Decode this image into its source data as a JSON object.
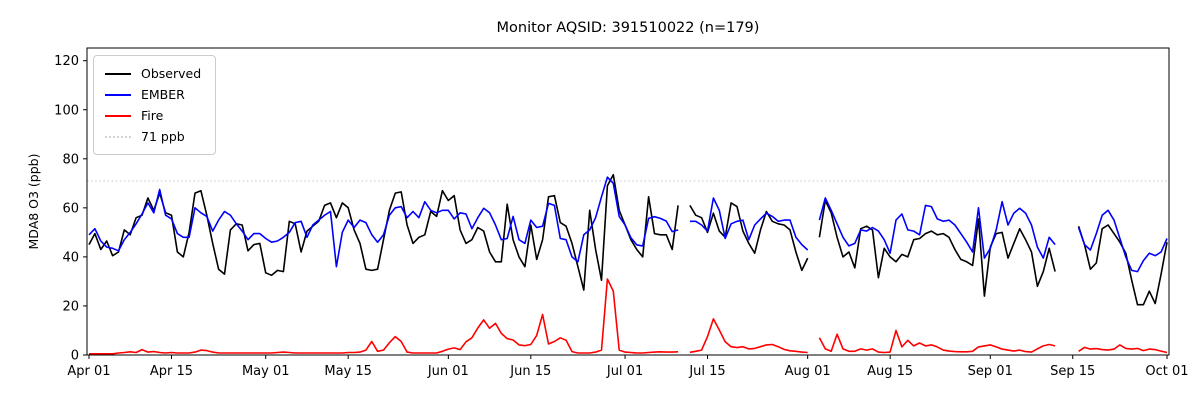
{
  "title": "Monitor AQSID: 391510022 (n=179)",
  "legend": [
    {
      "label": "Observed",
      "color": "#000000",
      "style": "solid"
    },
    {
      "label": "EMBER",
      "color": "#0000ff",
      "style": "solid"
    },
    {
      "label": "Fire",
      "color": "#ff0000",
      "style": "solid"
    },
    {
      "label": "71 ppb",
      "color": "#d3d3d3",
      "style": "dotted"
    }
  ],
  "y_axis": {
    "label": "MDA8 O3 (ppb)",
    "ticks": [
      0,
      20,
      40,
      60,
      80,
      100,
      120
    ]
  },
  "x_axis": {
    "tick_labels": [
      "Apr 01",
      "Apr 15",
      "May 01",
      "May 15",
      "Jun 01",
      "Jun 15",
      "Jul 01",
      "Jul 15",
      "Aug 01",
      "Aug 15",
      "Sep 01",
      "Sep 15",
      "Oct 01"
    ],
    "tick_days": [
      0,
      14,
      30,
      44,
      61,
      75,
      91,
      105,
      122,
      136,
      153,
      167,
      183
    ]
  },
  "chart_data": {
    "type": "line",
    "title": "Monitor AQSID: 391510022 (n=179)",
    "xlabel": "",
    "ylabel": "MDA8 O3 (ppb)",
    "ylim": [
      0,
      125
    ],
    "grid": false,
    "legend_position": "upper left",
    "threshold": {
      "label": "71 ppb",
      "value": 71,
      "color": "#d3d3d3",
      "style": "dotted"
    },
    "note": "Daily MDA8 ozone, Apr 01 - Oct 01. null = missing day (Jul 11, Aug 02, Sep 13-15); n=179 observed days.",
    "x": [
      "Apr 01",
      "Apr 02",
      "Apr 03",
      "Apr 04",
      "Apr 05",
      "Apr 06",
      "Apr 07",
      "Apr 08",
      "Apr 09",
      "Apr 10",
      "Apr 11",
      "Apr 12",
      "Apr 13",
      "Apr 14",
      "Apr 15",
      "Apr 16",
      "Apr 17",
      "Apr 18",
      "Apr 19",
      "Apr 20",
      "Apr 21",
      "Apr 22",
      "Apr 23",
      "Apr 24",
      "Apr 25",
      "Apr 26",
      "Apr 27",
      "Apr 28",
      "Apr 29",
      "Apr 30",
      "May 01",
      "May 02",
      "May 03",
      "May 04",
      "May 05",
      "May 06",
      "May 07",
      "May 08",
      "May 09",
      "May 10",
      "May 11",
      "May 12",
      "May 13",
      "May 14",
      "May 15",
      "May 16",
      "May 17",
      "May 18",
      "May 19",
      "May 20",
      "May 21",
      "May 22",
      "May 23",
      "May 24",
      "May 25",
      "May 26",
      "May 27",
      "May 28",
      "May 29",
      "May 30",
      "May 31",
      "Jun 01",
      "Jun 02",
      "Jun 03",
      "Jun 04",
      "Jun 05",
      "Jun 06",
      "Jun 07",
      "Jun 08",
      "Jun 09",
      "Jun 10",
      "Jun 11",
      "Jun 12",
      "Jun 13",
      "Jun 14",
      "Jun 15",
      "Jun 16",
      "Jun 17",
      "Jun 18",
      "Jun 19",
      "Jun 20",
      "Jun 21",
      "Jun 22",
      "Jun 23",
      "Jun 24",
      "Jun 25",
      "Jun 26",
      "Jun 27",
      "Jun 28",
      "Jun 29",
      "Jun 30",
      "Jul 01",
      "Jul 02",
      "Jul 03",
      "Jul 04",
      "Jul 05",
      "Jul 06",
      "Jul 07",
      "Jul 08",
      "Jul 09",
      "Jul 10",
      "Jul 11",
      "Jul 12",
      "Jul 13",
      "Jul 14",
      "Jul 15",
      "Jul 16",
      "Jul 17",
      "Jul 18",
      "Jul 19",
      "Jul 20",
      "Jul 21",
      "Jul 22",
      "Jul 23",
      "Jul 24",
      "Jul 25",
      "Jul 26",
      "Jul 27",
      "Jul 28",
      "Jul 29",
      "Jul 30",
      "Jul 31",
      "Aug 01",
      "Aug 02",
      "Aug 03",
      "Aug 04",
      "Aug 05",
      "Aug 06",
      "Aug 07",
      "Aug 08",
      "Aug 09",
      "Aug 10",
      "Aug 11",
      "Aug 12",
      "Aug 13",
      "Aug 14",
      "Aug 15",
      "Aug 16",
      "Aug 17",
      "Aug 18",
      "Aug 19",
      "Aug 20",
      "Aug 21",
      "Aug 22",
      "Aug 23",
      "Aug 24",
      "Aug 25",
      "Aug 26",
      "Aug 27",
      "Aug 28",
      "Aug 29",
      "Aug 30",
      "Aug 31",
      "Sep 01",
      "Sep 02",
      "Sep 03",
      "Sep 04",
      "Sep 05",
      "Sep 06",
      "Sep 07",
      "Sep 08",
      "Sep 09",
      "Sep 10",
      "Sep 11",
      "Sep 12",
      "Sep 13",
      "Sep 14",
      "Sep 15",
      "Sep 16",
      "Sep 17",
      "Sep 18",
      "Sep 19",
      "Sep 20",
      "Sep 21",
      "Sep 22",
      "Sep 23",
      "Sep 24",
      "Sep 25",
      "Sep 26",
      "Sep 27",
      "Sep 28",
      "Sep 29",
      "Sep 30",
      "Oct 01"
    ],
    "series": [
      {
        "name": "Observed",
        "color": "#000000",
        "values": [
          45,
          49.5,
          43,
          46.5,
          40.5,
          42,
          51,
          49,
          56,
          57,
          64,
          59,
          66,
          58,
          57,
          42,
          40,
          50,
          66,
          67,
          57,
          45.5,
          35,
          33,
          51,
          53.5,
          53,
          42.5,
          45,
          45.5,
          33.5,
          32.5,
          34.5,
          34,
          54.5,
          53.5,
          42,
          50.5,
          52.5,
          54.5,
          61,
          62,
          56,
          62,
          60,
          51,
          45.5,
          35,
          34.5,
          35,
          47,
          59,
          66,
          66.5,
          53,
          45.5,
          48,
          49,
          58.5,
          56.5,
          67,
          63,
          65,
          51,
          45.5,
          47,
          52,
          50.5,
          42,
          38,
          38,
          61.5,
          47,
          40,
          36,
          53,
          39,
          47,
          64.5,
          65,
          54,
          52.5,
          45.5,
          36,
          26.5,
          59,
          43,
          30.5,
          69,
          73.5,
          59,
          53,
          47,
          43,
          40,
          64.5,
          49.5,
          49,
          49,
          43,
          61,
          null,
          61,
          57,
          56,
          50,
          57.8,
          50.5,
          48,
          62,
          60.5,
          50.5,
          45.5,
          41.5,
          51,
          58.5,
          54.5,
          53.5,
          53,
          51,
          42,
          34.5,
          39.5,
          null,
          48,
          63,
          58,
          48,
          40,
          42,
          35.5,
          51.5,
          52.5,
          51,
          31.5,
          43.5,
          40,
          38,
          41,
          40,
          47,
          47.5,
          49.5,
          50.5,
          49,
          49.5,
          48,
          43,
          39,
          38,
          36.5,
          55.5,
          24,
          44,
          49.5,
          50,
          39.5,
          45.5,
          51.5,
          47,
          42,
          28,
          34,
          43.5,
          34,
          null,
          null,
          null,
          52.5,
          45,
          35,
          37.5,
          51.5,
          53,
          49.5,
          46,
          41.5,
          30.5,
          20.5,
          20.5,
          26,
          21,
          33,
          46
        ]
      },
      {
        "name": "EMBER",
        "color": "#0000ff",
        "values": [
          49,
          51.5,
          46.5,
          44,
          43.5,
          42.5,
          47,
          50,
          53.5,
          57.5,
          62,
          58,
          67.5,
          57,
          55.5,
          49.5,
          48,
          48,
          60,
          58,
          56.5,
          50.5,
          55,
          58.5,
          57,
          53.5,
          50.5,
          47,
          49.5,
          49.5,
          47.5,
          46,
          46.5,
          48,
          50,
          54,
          54.5,
          48,
          53,
          55,
          57,
          58.5,
          36,
          50,
          55,
          52,
          55,
          54,
          49,
          46,
          49,
          57,
          60,
          60.5,
          56,
          58.5,
          56,
          62.5,
          59,
          58,
          59,
          59,
          55.5,
          58,
          57.5,
          51.5,
          56,
          59.8,
          58,
          53,
          47,
          47.5,
          56.5,
          47,
          45.5,
          55,
          52,
          52.5,
          61.8,
          61,
          47.5,
          47,
          40,
          38,
          49,
          51,
          56,
          64.5,
          72.5,
          70,
          56.5,
          53,
          47.8,
          44.9,
          44.5,
          55.7,
          56.4,
          55.7,
          54.6,
          50.3,
          51,
          null,
          54.5,
          54.5,
          53,
          50.5,
          64,
          59,
          47.5,
          53.5,
          54.5,
          55,
          47,
          53,
          55.5,
          57.8,
          56.5,
          54.5,
          55,
          55,
          48,
          45,
          42.8,
          null,
          55,
          64,
          59,
          53.5,
          48,
          44.5,
          45.5,
          51,
          50.5,
          52,
          50.5,
          47,
          41.5,
          55,
          57.5,
          51,
          50.5,
          49,
          61,
          60.5,
          55.5,
          54.5,
          55,
          53,
          49.5,
          46,
          42,
          60,
          39.5,
          43.5,
          51,
          62.5,
          53,
          57.8,
          59.8,
          57.8,
          53,
          44,
          39.5,
          48,
          45,
          null,
          null,
          null,
          52,
          45,
          42.8,
          49.5,
          57,
          59,
          55,
          47.5,
          40,
          34.5,
          34,
          38.5,
          41.5,
          40.5,
          42,
          47.5
        ]
      },
      {
        "name": "Fire",
        "color": "#ff0000",
        "values": [
          0.5,
          0.5,
          0.5,
          0.5,
          0.5,
          0.8,
          1,
          1.3,
          1,
          2.2,
          1.2,
          1.4,
          1,
          0.8,
          1,
          0.8,
          0.8,
          0.8,
          1.2,
          2,
          1.8,
          1.2,
          0.8,
          0.8,
          0.8,
          0.8,
          0.8,
          0.8,
          0.8,
          0.8,
          0.8,
          0.8,
          1,
          1.2,
          1,
          0.8,
          0.8,
          0.8,
          0.8,
          0.8,
          0.8,
          0.8,
          0.8,
          0.8,
          1,
          1,
          1.2,
          2,
          5.5,
          1.5,
          2,
          5,
          7.5,
          5.5,
          1.2,
          0.8,
          0.8,
          0.8,
          0.8,
          0.8,
          1.5,
          2.4,
          2.9,
          2.2,
          5.4,
          7,
          11,
          14.3,
          10.9,
          12.9,
          8.8,
          6.7,
          6.1,
          4.1,
          3.8,
          4.3,
          8,
          16.5,
          4.5,
          5.5,
          7,
          6,
          1.4,
          0.8,
          0.8,
          0.8,
          1.2,
          2,
          31,
          26,
          2,
          1.2,
          1,
          0.8,
          0.8,
          1,
          1.2,
          1.3,
          1.2,
          1.2,
          1.3,
          null,
          1.1,
          1.5,
          2,
          7.5,
          14.7,
          10.2,
          5.4,
          3.4,
          3,
          3.4,
          2.5,
          2.7,
          3.4,
          4.1,
          4.3,
          3.4,
          2.3,
          1.7,
          1.5,
          1.2,
          1,
          null,
          7,
          2.5,
          1.5,
          8.5,
          2.5,
          1.5,
          1.5,
          2.5,
          2,
          2.5,
          1.2,
          1,
          1.2,
          10,
          3.3,
          6,
          3.7,
          4.9,
          3.7,
          4.1,
          3.3,
          2,
          1.6,
          1.4,
          1.3,
          1.3,
          1.5,
          3.3,
          3.7,
          4.1,
          3.3,
          2.4,
          2,
          1.6,
          2,
          1.4,
          1.2,
          2.5,
          3.7,
          4.3,
          3.7,
          null,
          null,
          null,
          1.5,
          3.1,
          2.4,
          2.6,
          2.2,
          2,
          2.4,
          4.1,
          2.7,
          2.4,
          2.7,
          1.8,
          2.4,
          2.2,
          1.6,
          1
        ]
      }
    ]
  }
}
